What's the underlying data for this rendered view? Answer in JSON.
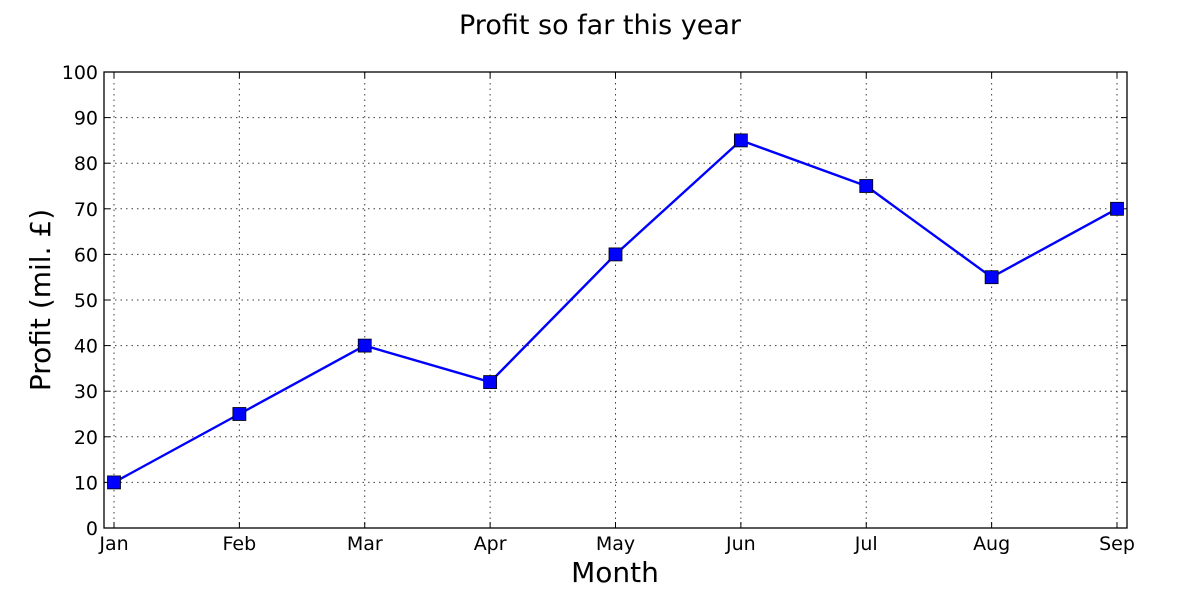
{
  "chart_data": {
    "type": "line",
    "title": "Profit so far this year",
    "xlabel": "Month",
    "ylabel": "Profit (mil. £)",
    "categories": [
      "Jan",
      "Feb",
      "Mar",
      "Apr",
      "May",
      "Jun",
      "Jul",
      "Aug",
      "Sep"
    ],
    "series": [
      {
        "values": [
          10,
          25,
          40,
          32,
          60,
          85,
          75,
          55,
          70
        ],
        "color": "#0000ff",
        "marker": "square"
      }
    ],
    "ylim": [
      0,
      100
    ],
    "yticks": [
      "0",
      "10",
      "20",
      "30",
      "40",
      "50",
      "60",
      "70",
      "80",
      "90",
      "100"
    ],
    "grid": true
  }
}
